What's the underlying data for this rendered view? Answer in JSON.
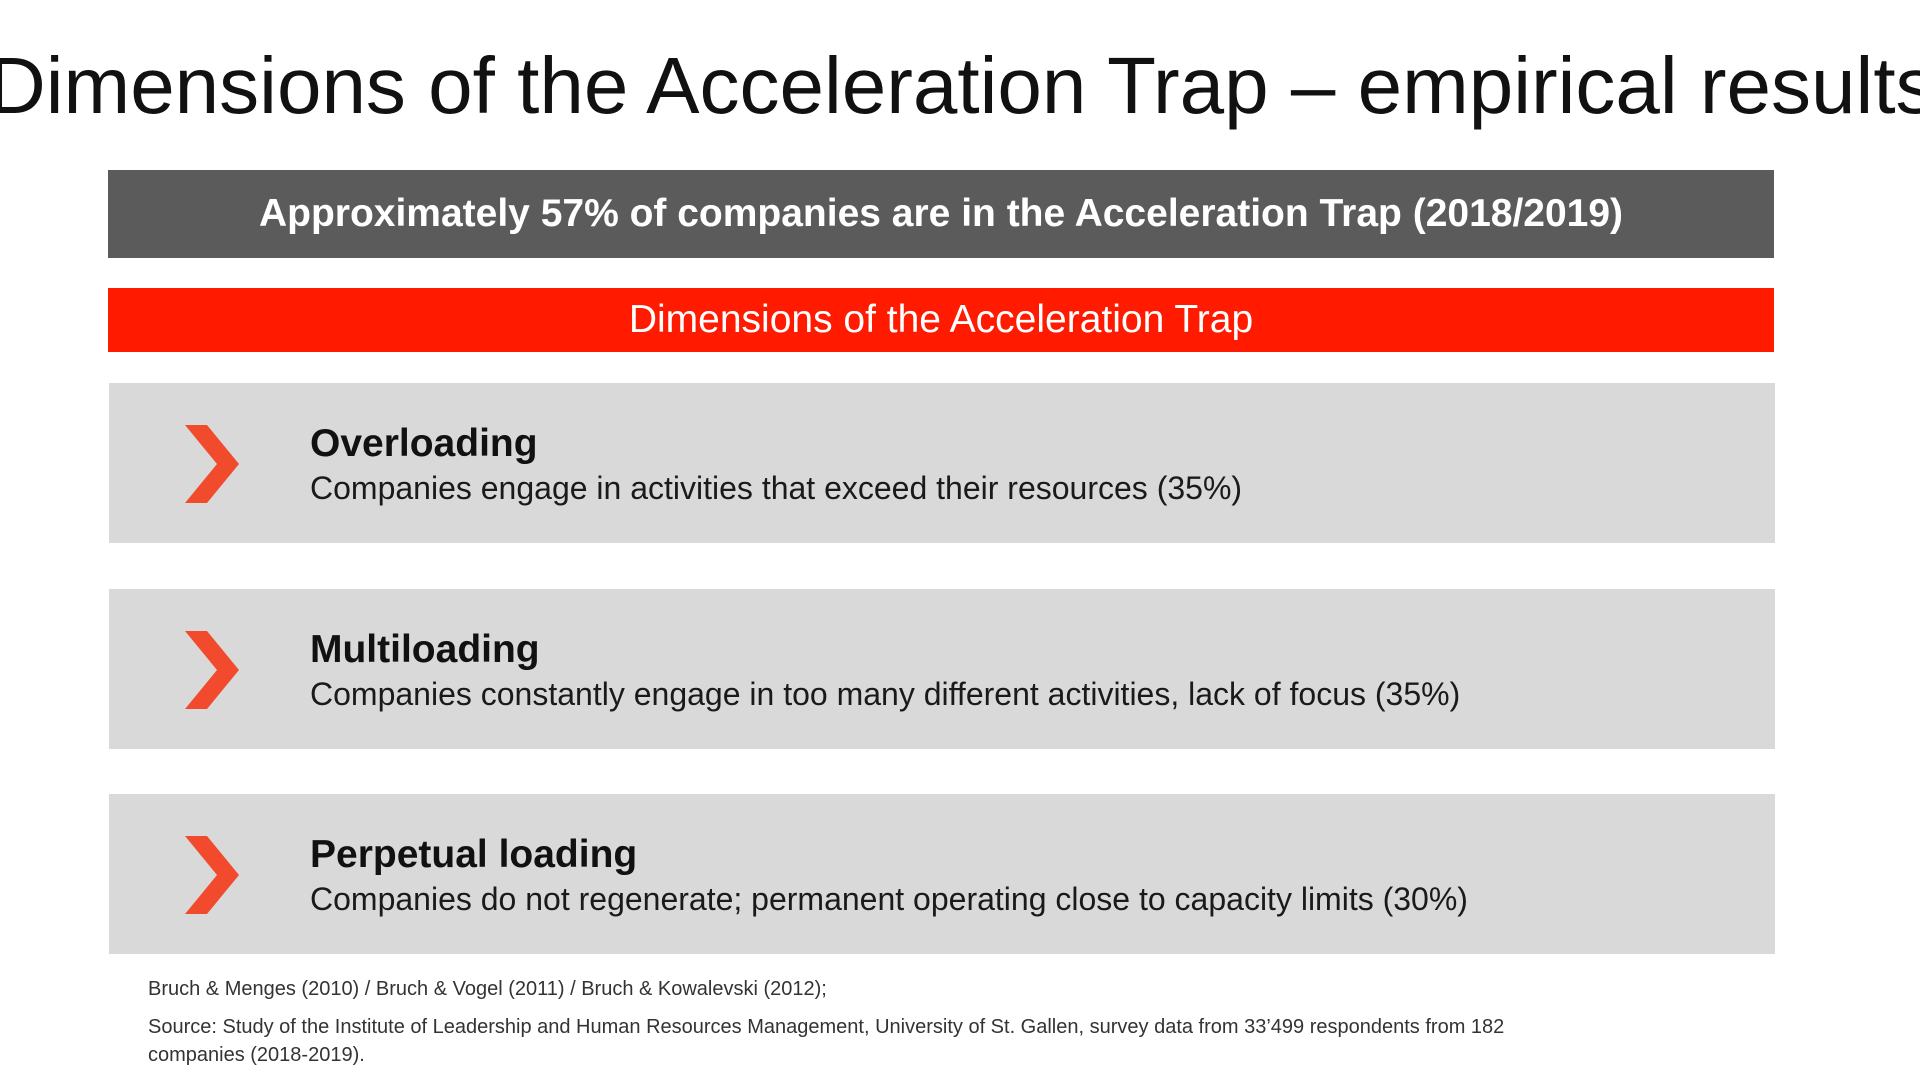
{
  "slide": {
    "title": "Dimensions of the Acceleration Trap – empirical results"
  },
  "summary_banner": {
    "text": "Approximately 57% of companies are in the Acceleration Trap (2018/2019)"
  },
  "section_banner": {
    "text": "Dimensions of the Acceleration Trap"
  },
  "dimensions": [
    {
      "heading": "Overloading",
      "description": "Companies engage in activities that exceed their resources (35%)",
      "icon": "chevron-right-icon"
    },
    {
      "heading": "Multiloading",
      "description": "Companies constantly engage in too many different activities, lack of focus (35%)",
      "icon": "chevron-right-icon"
    },
    {
      "heading": "Perpetual loading",
      "description": "Companies do not regenerate; permanent operating close to capacity limits (30%)",
      "icon": "chevron-right-icon"
    }
  ],
  "references": {
    "citations": "Bruch & Menges (2010) / Bruch & Vogel (2011) / Bruch & Kowalevski (2012);",
    "source": "Source: Study of the Institute of Leadership and Human Resources Management, University of St. Gallen, survey data from 33’499 respondents from 182 companies (2018-2019)."
  },
  "colors": {
    "accent": "#ff1a00",
    "chevron": "#f24a2c",
    "banner_gray": "#5b5b5b",
    "card_gray": "#d9d9d9"
  }
}
